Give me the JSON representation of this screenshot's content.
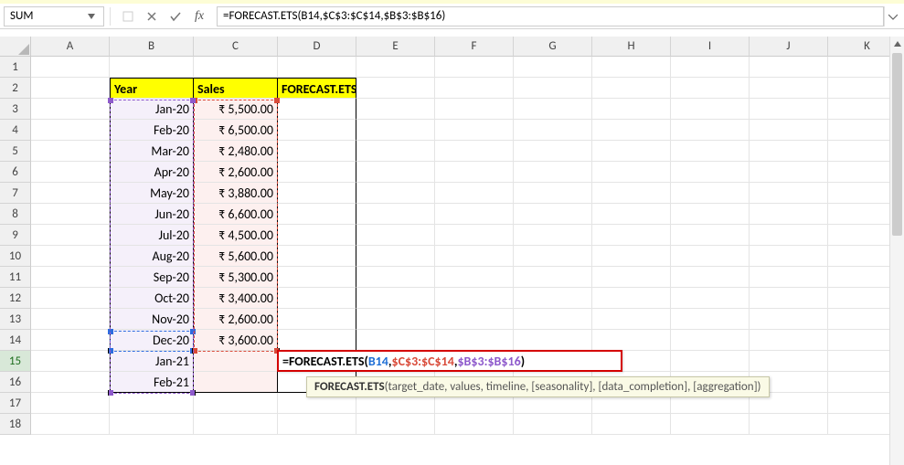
{
  "namebox": {
    "value": "SUM"
  },
  "formula_bar": {
    "value": "=FORECAST.ETS(B14,$C$3:$C$14,$B$3:$B$16)"
  },
  "columns": [
    "A",
    "B",
    "C",
    "D",
    "E",
    "F",
    "G",
    "H",
    "I",
    "J",
    "K"
  ],
  "rows": [
    "1",
    "2",
    "3",
    "4",
    "5",
    "6",
    "7",
    "8",
    "9",
    "10",
    "11",
    "12",
    "13",
    "14",
    "15",
    "16",
    "17",
    "18"
  ],
  "active_row": "15",
  "headers": {
    "b2": "Year",
    "c2": "Sales",
    "d2": "FORECAST.ETS"
  },
  "data": {
    "b": [
      "Jan-20",
      "Feb-20",
      "Mar-20",
      "Apr-20",
      "May-20",
      "Jun-20",
      "Jul-20",
      "Aug-20",
      "Sep-20",
      "Oct-20",
      "Nov-20",
      "Dec-20",
      "Jan-21",
      "Feb-21"
    ],
    "c": [
      "₹ 5,500.00",
      "₹ 6,500.00",
      "₹ 2,480.00",
      "₹ 2,600.00",
      "₹ 3,880.00",
      "₹ 6,600.00",
      "₹ 4,500.00",
      "₹ 5,600.00",
      "₹ 5,300.00",
      "₹ 3,400.00",
      "₹ 2,600.00",
      "₹ 3,600.00",
      "",
      ""
    ]
  },
  "editing": {
    "prefix": "=FORECAST.ETS(",
    "arg1": "B14",
    "sep1": ",",
    "arg2": "$C$3:$C$14",
    "sep2": ",",
    "arg3": "$B$3:$B$16",
    "suffix": ")"
  },
  "tooltip": {
    "fn": "FORECAST.ETS",
    "args": "(target_date, values, timeline, [seasonality], [data_completion], [aggregation])"
  },
  "colors": {
    "header_bg": "#ffff00",
    "b_fill": "#f5f0fa",
    "c_fill": "#fdf0ef",
    "marquee_blue": "#2d6cdf",
    "marquee_red": "#d94b3a",
    "marquee_purple": "#8e5acc",
    "edit_border": "#d40000"
  }
}
